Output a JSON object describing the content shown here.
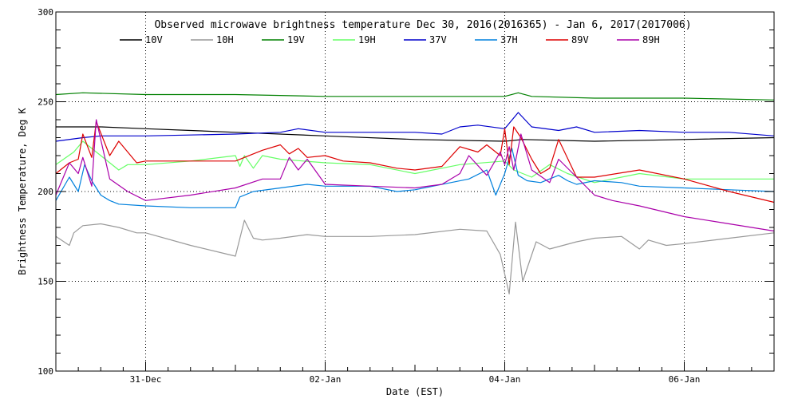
{
  "chart_data": {
    "type": "line",
    "title": "Observed microwave brightness temperature Dec 30, 2016(2016365) - Jan  6, 2017(2017006)",
    "xlabel": "Date (EST)",
    "ylabel": "Brightness Temperature, Deg K",
    "xlim": [
      0,
      8
    ],
    "ylim": [
      100,
      300
    ],
    "x_units": "days since 30-Dec-2016 00:00 EST",
    "yticks": [
      100,
      150,
      200,
      250,
      300
    ],
    "xticks": [
      {
        "x": 1,
        "label": "31-Dec"
      },
      {
        "x": 3,
        "label": "02-Jan"
      },
      {
        "x": 5,
        "label": "04-Jan"
      },
      {
        "x": 7,
        "label": "06-Jan"
      }
    ],
    "grid": "dotted",
    "legend_position": "top",
    "series": [
      {
        "name": "10V",
        "color": "#000000",
        "x": [
          0,
          0.5,
          1,
          1.5,
          2,
          3,
          4,
          5,
          5.2,
          6,
          7,
          8
        ],
        "y": [
          236,
          236,
          235,
          234,
          233,
          231,
          229,
          228,
          229,
          228,
          229,
          230
        ]
      },
      {
        "name": "10H",
        "color": "#999999",
        "x": [
          0,
          0.15,
          0.2,
          0.3,
          0.5,
          0.7,
          0.9,
          1,
          1.5,
          2,
          2.1,
          2.2,
          2.3,
          2.5,
          2.8,
          3,
          3.5,
          4,
          4.5,
          4.8,
          4.95,
          5.05,
          5.12,
          5.2,
          5.35,
          5.5,
          5.8,
          6,
          6.3,
          6.5,
          6.6,
          6.8,
          7,
          7.5,
          8
        ],
        "y": [
          175,
          170,
          177,
          181,
          182,
          180,
          177,
          177,
          170,
          164,
          184,
          174,
          173,
          174,
          176,
          175,
          175,
          176,
          179,
          178,
          165,
          143,
          183,
          150,
          172,
          168,
          172,
          174,
          175,
          168,
          173,
          170,
          171,
          174,
          177
        ]
      },
      {
        "name": "19V",
        "color": "#008000",
        "x": [
          0,
          0.3,
          1,
          2,
          3,
          4,
          5,
          5.15,
          5.3,
          6,
          7,
          8
        ],
        "y": [
          254,
          255,
          254,
          254,
          253,
          253,
          253,
          255,
          253,
          252,
          252,
          251
        ]
      },
      {
        "name": "19H",
        "color": "#66ff66",
        "x": [
          0,
          0.2,
          0.3,
          0.5,
          0.7,
          0.8,
          1,
          1.5,
          2,
          2.05,
          2.1,
          2.2,
          2.3,
          2.5,
          3,
          3.5,
          4,
          4.5,
          5,
          5.1,
          5.3,
          5.5,
          5.7,
          6,
          6.3,
          6.5,
          7,
          8
        ],
        "y": [
          215,
          222,
          228,
          220,
          212,
          215,
          215,
          217,
          220,
          214,
          220,
          213,
          220,
          218,
          216,
          215,
          210,
          215,
          217,
          212,
          208,
          215,
          210,
          205,
          208,
          210,
          207,
          207
        ]
      },
      {
        "name": "37V",
        "color": "#0000cc",
        "x": [
          0,
          0.3,
          0.5,
          1,
          2,
          2.5,
          2.7,
          3,
          3.5,
          4,
          4.3,
          4.5,
          4.7,
          5,
          5.15,
          5.3,
          5.6,
          5.8,
          6,
          6.5,
          7,
          7.5,
          8
        ],
        "y": [
          228,
          230,
          231,
          231,
          232,
          233,
          235,
          233,
          233,
          233,
          232,
          236,
          237,
          235,
          244,
          236,
          234,
          236,
          233,
          234,
          233,
          233,
          231
        ]
      },
      {
        "name": "37H",
        "color": "#0080dd",
        "x": [
          0,
          0.15,
          0.25,
          0.32,
          0.4,
          0.5,
          0.6,
          0.7,
          1,
          1.5,
          2,
          2.05,
          2.2,
          2.5,
          2.8,
          3,
          3.5,
          3.8,
          4,
          4.2,
          4.4,
          4.6,
          4.8,
          4.9,
          5,
          5.08,
          5.15,
          5.25,
          5.4,
          5.6,
          5.7,
          5.8,
          6,
          6.3,
          6.5,
          7,
          7.5,
          8
        ],
        "y": [
          195,
          208,
          200,
          215,
          206,
          198,
          195,
          193,
          192,
          191,
          191,
          197,
          200,
          202,
          204,
          203,
          203,
          200,
          201,
          203,
          205,
          207,
          212,
          198,
          210,
          224,
          209,
          206,
          205,
          209,
          206,
          204,
          206,
          205,
          203,
          202,
          201,
          200
        ]
      },
      {
        "name": "89V",
        "color": "#dd0000",
        "x": [
          0,
          0.15,
          0.25,
          0.3,
          0.4,
          0.45,
          0.6,
          0.7,
          0.9,
          1,
          1.5,
          2,
          2.3,
          2.5,
          2.6,
          2.7,
          2.8,
          3,
          3.2,
          3.5,
          3.8,
          4,
          4.3,
          4.5,
          4.7,
          4.8,
          4.95,
          5,
          5.05,
          5.1,
          5.18,
          5.3,
          5.4,
          5.5,
          5.6,
          5.8,
          6,
          6.5,
          7,
          7.5,
          8
        ],
        "y": [
          210,
          216,
          218,
          232,
          219,
          239,
          220,
          228,
          216,
          217,
          217,
          217,
          223,
          226,
          221,
          224,
          219,
          220,
          217,
          216,
          213,
          212,
          214,
          225,
          222,
          226,
          220,
          235,
          215,
          236,
          230,
          218,
          210,
          213,
          229,
          208,
          208,
          212,
          207,
          200,
          194
        ]
      },
      {
        "name": "89H",
        "color": "#aa00aa",
        "x": [
          0,
          0.15,
          0.25,
          0.3,
          0.4,
          0.45,
          0.6,
          0.8,
          1,
          1.5,
          2,
          2.3,
          2.5,
          2.6,
          2.7,
          2.8,
          3,
          3.5,
          4,
          4.3,
          4.5,
          4.6,
          4.8,
          4.95,
          5,
          5.05,
          5.1,
          5.18,
          5.3,
          5.5,
          5.6,
          5.8,
          6,
          6.2,
          6.5,
          7,
          7.5,
          8
        ],
        "y": [
          198,
          216,
          210,
          219,
          203,
          240,
          207,
          200,
          195,
          198,
          202,
          207,
          207,
          219,
          212,
          218,
          204,
          203,
          202,
          204,
          210,
          220,
          209,
          222,
          215,
          225,
          212,
          232,
          212,
          205,
          218,
          208,
          198,
          195,
          192,
          186,
          182,
          178
        ]
      }
    ]
  }
}
